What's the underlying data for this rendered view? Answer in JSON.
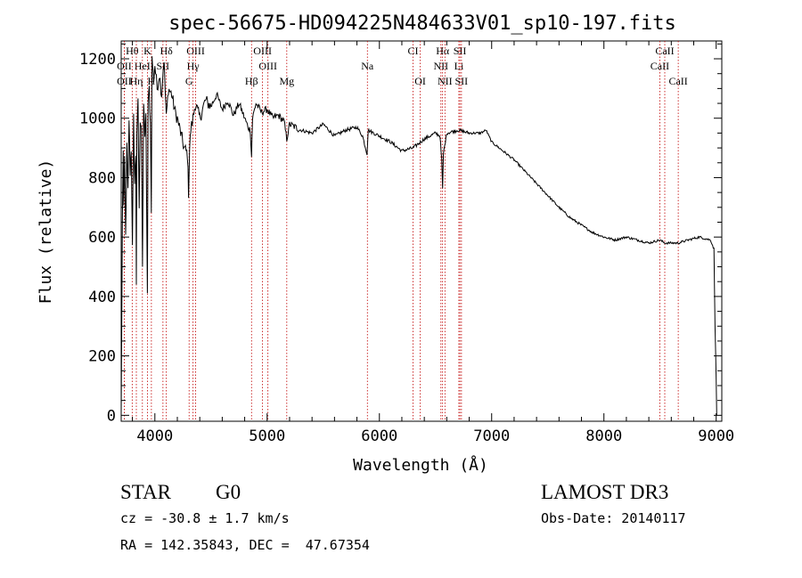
{
  "chart_data": {
    "type": "line",
    "title": "spec-56675-HD094225N484633V01_sp10-197.fits",
    "xlabel": "Wavelength (Å)",
    "ylabel": "Flux (relative)",
    "xlim": [
      3700,
      9050
    ],
    "ylim": [
      -20,
      1260
    ],
    "xticks": [
      4000,
      5000,
      6000,
      7000,
      8000,
      9000
    ],
    "yticks": [
      0,
      200,
      400,
      600,
      800,
      1000,
      1200
    ],
    "grid": false,
    "series": [
      {
        "name": "flux",
        "x": [
          3700,
          3705,
          3710,
          3718,
          3722,
          3730,
          3740,
          3750,
          3760,
          3770,
          3780,
          3790,
          3800,
          3810,
          3820,
          3830,
          3835,
          3840,
          3850,
          3860,
          3870,
          3880,
          3890,
          3900,
          3910,
          3920,
          3933,
          3940,
          3950,
          3960,
          3968,
          3975,
          3990,
          4000,
          4020,
          4040,
          4060,
          4080,
          4102,
          4120,
          4150,
          4180,
          4200,
          4230,
          4260,
          4290,
          4300,
          4310,
          4320,
          4340,
          4360,
          4400,
          4450,
          4500,
          4550,
          4600,
          4650,
          4700,
          4750,
          4800,
          4830,
          4850,
          4861,
          4870,
          4900,
          4950,
          5000,
          5050,
          5100,
          5150,
          5175,
          5200,
          5300,
          5400,
          5500,
          5600,
          5700,
          5800,
          5850,
          5890,
          5900,
          5950,
          6000,
          6100,
          6200,
          6300,
          6400,
          6500,
          6540,
          6555,
          6563,
          6570,
          6600,
          6700,
          6800,
          6900,
          6950,
          7000,
          7100,
          7200,
          7300,
          7400,
          7500,
          7600,
          7700,
          7800,
          7900,
          8000,
          8100,
          8200,
          8300,
          8400,
          8498,
          8542,
          8600,
          8662,
          8750,
          8850,
          8950,
          8980,
          8990,
          9000,
          9005
        ],
        "values": [
          0,
          300,
          650,
          900,
          700,
          850,
          600,
          900,
          750,
          1000,
          820,
          900,
          560,
          1000,
          780,
          880,
          450,
          950,
          1050,
          700,
          1000,
          980,
          500,
          1050,
          950,
          1000,
          420,
          1050,
          1100,
          980,
          700,
          1200,
          1130,
          1180,
          1100,
          1150,
          1080,
          1200,
          1000,
          1100,
          1080,
          1020,
          1000,
          950,
          900,
          880,
          750,
          900,
          960,
          1000,
          1050,
          1000,
          1060,
          1040,
          1080,
          1030,
          1060,
          1010,
          1050,
          1000,
          970,
          960,
          870,
          1000,
          1050,
          1020,
          1030,
          1000,
          1010,
          990,
          930,
          980,
          960,
          950,
          980,
          940,
          960,
          970,
          940,
          880,
          960,
          950,
          940,
          920,
          890,
          900,
          930,
          950,
          940,
          860,
          760,
          880,
          950,
          960,
          950,
          950,
          960,
          920,
          890,
          860,
          820,
          780,
          740,
          700,
          665,
          640,
          615,
          600,
          590,
          600,
          590,
          580,
          590,
          580,
          580,
          580,
          590,
          600,
          590,
          560,
          300,
          120,
          0
        ]
      }
    ],
    "line_markers": [
      {
        "label": "Hθ",
        "x": 3798,
        "row": 1
      },
      {
        "label": "OII",
        "x": 3727,
        "row": 2
      },
      {
        "label": "OII",
        "x": 3727,
        "row": 3
      },
      {
        "label": "K",
        "x": 3934,
        "row": 1
      },
      {
        "label": "HeI",
        "x": 3889,
        "row": 2
      },
      {
        "label": "Hη",
        "x": 3835,
        "row": 3
      },
      {
        "label": "Hδ",
        "x": 4102,
        "row": 1
      },
      {
        "label": "SII",
        "x": 4072,
        "row": 2
      },
      {
        "label": "H",
        "x": 3969,
        "row": 3
      },
      {
        "label": "OIII",
        "x": 4363,
        "row": 1
      },
      {
        "label": "Hγ",
        "x": 4340,
        "row": 2
      },
      {
        "label": "G",
        "x": 4305,
        "row": 3
      },
      {
        "label": "Hβ",
        "x": 4861,
        "row": 3
      },
      {
        "label": "OIII",
        "x": 4959,
        "row": 1
      },
      {
        "label": "OIII",
        "x": 5007,
        "row": 2
      },
      {
        "label": "Mg",
        "x": 5175,
        "row": 3
      },
      {
        "label": "Na",
        "x": 5893,
        "row": 2
      },
      {
        "label": "CI",
        "x": 6300,
        "row": 1
      },
      {
        "label": "OI",
        "x": 6364,
        "row": 3
      },
      {
        "label": "Hα",
        "x": 6563,
        "row": 1
      },
      {
        "label": "SII",
        "x": 6717,
        "row": 1
      },
      {
        "label": "NII",
        "x": 6548,
        "row": 2
      },
      {
        "label": "Li",
        "x": 6708,
        "row": 2
      },
      {
        "label": "NII",
        "x": 6584,
        "row": 3
      },
      {
        "label": "SII",
        "x": 6731,
        "row": 3
      },
      {
        "label": "CaII",
        "x": 8542,
        "row": 1
      },
      {
        "label": "CaII",
        "x": 8498,
        "row": 2
      },
      {
        "label": "CaII",
        "x": 8662,
        "row": 3
      }
    ]
  },
  "info": {
    "object_class": "STAR",
    "subclass": "G0",
    "survey": "LAMOST DR3",
    "redshift": "cz = -30.8 ± 1.7 km/s",
    "obs_date": "Obs-Date: 20140117",
    "coords": "RA = 142.35843, DEC =  47.67354"
  }
}
